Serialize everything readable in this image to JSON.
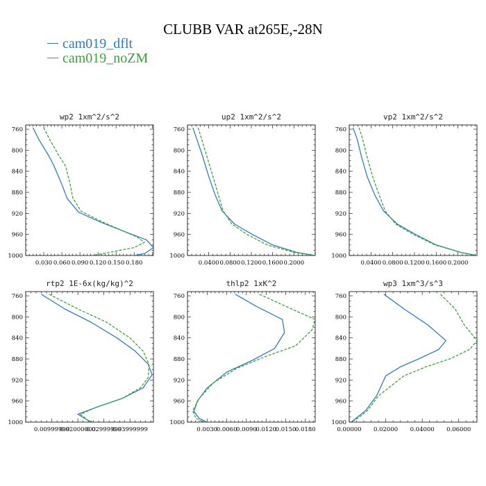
{
  "title": "CLUBB VAR at265E,-28N",
  "legend": [
    {
      "name": "cam019_dflt",
      "color": "#2f7bbf",
      "dash": "solid"
    },
    {
      "name": "cam019_noZM",
      "color": "#3aa33a",
      "dash": "dashed"
    }
  ],
  "chart_data": [
    {
      "type": "line",
      "title": "wp2  1xm^2/s^2",
      "xlim": [
        0,
        0.212
      ],
      "ylim": [
        1000,
        752
      ],
      "y_reversed": true,
      "x_ticks": [
        0.03,
        0.06,
        0.09,
        0.12,
        0.15,
        0.18
      ],
      "x_tick_labels": [
        "0.030",
        "0.060",
        "0.090",
        "0.120",
        "0.150",
        "0.180"
      ],
      "y_ticks": [
        760,
        800,
        840,
        880,
        920,
        960,
        1000
      ],
      "series": [
        {
          "name": "cam019_dflt",
          "points": [
            [
              0.012,
              757
            ],
            [
              0.022,
              780
            ],
            [
              0.038,
              810
            ],
            [
              0.047,
              830
            ],
            [
              0.06,
              865
            ],
            [
              0.069,
              892
            ],
            [
              0.088,
              918
            ],
            [
              0.125,
              937
            ],
            [
              0.165,
              955
            ],
            [
              0.2,
              970
            ],
            [
              0.212,
              985
            ],
            [
              0.198,
              996
            ],
            [
              0.18,
              1000
            ]
          ]
        },
        {
          "name": "cam019_noZM",
          "points": [
            [
              0.03,
              757
            ],
            [
              0.04,
              780
            ],
            [
              0.055,
              810
            ],
            [
              0.066,
              830
            ],
            [
              0.073,
              860
            ],
            [
              0.078,
              890
            ],
            [
              0.092,
              916
            ],
            [
              0.125,
              935
            ],
            [
              0.155,
              950
            ],
            [
              0.185,
              965
            ],
            [
              0.197,
              975
            ],
            [
              0.18,
              985
            ],
            [
              0.13,
              996
            ],
            [
              0.11,
              1000
            ]
          ]
        }
      ]
    },
    {
      "type": "line",
      "title": "up2  1xm^2/s^2",
      "xlim": [
        0,
        0.24
      ],
      "ylim": [
        1000,
        752
      ],
      "y_reversed": true,
      "x_ticks": [
        0.04,
        0.08,
        0.12,
        0.16,
        0.2
      ],
      "x_tick_labels": [
        "0.0400",
        "0.0800",
        "0.1200",
        "0.1600",
        "0.2000"
      ],
      "y_ticks": [
        760,
        800,
        840,
        880,
        920,
        960,
        1000
      ],
      "series": [
        {
          "name": "cam019_dflt",
          "points": [
            [
              0.01,
              757
            ],
            [
              0.018,
              780
            ],
            [
              0.028,
              810
            ],
            [
              0.04,
              850
            ],
            [
              0.052,
              885
            ],
            [
              0.065,
              915
            ],
            [
              0.088,
              940
            ],
            [
              0.122,
              960
            ],
            [
              0.16,
              980
            ],
            [
              0.205,
              994
            ],
            [
              0.24,
              1000
            ]
          ]
        },
        {
          "name": "cam019_noZM",
          "points": [
            [
              0.02,
              757
            ],
            [
              0.027,
              780
            ],
            [
              0.036,
              810
            ],
            [
              0.048,
              850
            ],
            [
              0.058,
              885
            ],
            [
              0.067,
              915
            ],
            [
              0.083,
              940
            ],
            [
              0.112,
              960
            ],
            [
              0.15,
              980
            ],
            [
              0.2,
              994
            ],
            [
              0.24,
              1000
            ]
          ]
        }
      ]
    },
    {
      "type": "line",
      "title": "vp2  1xm^2/s^2",
      "xlim": [
        0,
        0.235
      ],
      "ylim": [
        1000,
        752
      ],
      "y_reversed": true,
      "x_ticks": [
        0.04,
        0.08,
        0.12,
        0.16,
        0.2
      ],
      "x_tick_labels": [
        "0.0400",
        "0.0800",
        "0.1200",
        "0.1600",
        "0.2000"
      ],
      "y_ticks": [
        760,
        800,
        840,
        880,
        920,
        960,
        1000
      ],
      "series": [
        {
          "name": "cam019_dflt",
          "points": [
            [
              0.007,
              757
            ],
            [
              0.015,
              780
            ],
            [
              0.022,
              810
            ],
            [
              0.033,
              850
            ],
            [
              0.047,
              885
            ],
            [
              0.063,
              915
            ],
            [
              0.088,
              940
            ],
            [
              0.122,
              960
            ],
            [
              0.16,
              980
            ],
            [
              0.205,
              994
            ],
            [
              0.235,
              1000
            ]
          ]
        },
        {
          "name": "cam019_noZM",
          "points": [
            [
              0.018,
              757
            ],
            [
              0.025,
              780
            ],
            [
              0.032,
              810
            ],
            [
              0.043,
              850
            ],
            [
              0.055,
              885
            ],
            [
              0.066,
              915
            ],
            [
              0.085,
              940
            ],
            [
              0.118,
              960
            ],
            [
              0.158,
              980
            ],
            [
              0.205,
              994
            ],
            [
              0.235,
              1000
            ]
          ]
        }
      ]
    },
    {
      "type": "line",
      "title": "rtp2  1E-6x(kg/kg)^2",
      "xlim": [
        0,
        0.049
      ],
      "ylim": [
        1000,
        752
      ],
      "y_reversed": true,
      "x_ticks": [
        0.01,
        0.02,
        0.03,
        0.04
      ],
      "x_tick_labels": [
        "0.00999999",
        "0.02000000",
        "0.02999999",
        "0.03999999"
      ],
      "y_ticks": [
        760,
        800,
        840,
        880,
        920,
        960,
        1000
      ],
      "series": [
        {
          "name": "cam019_dflt",
          "points": [
            [
              0.006,
              757
            ],
            [
              0.015,
              785
            ],
            [
              0.025,
              810
            ],
            [
              0.035,
              840
            ],
            [
              0.042,
              865
            ],
            [
              0.047,
              890
            ],
            [
              0.0485,
              910
            ],
            [
              0.045,
              935
            ],
            [
              0.037,
              955
            ],
            [
              0.027,
              972
            ],
            [
              0.02,
              985
            ],
            [
              0.024,
              997
            ],
            [
              0.026,
              1000
            ]
          ]
        },
        {
          "name": "cam019_noZM",
          "points": [
            [
              0.009,
              757
            ],
            [
              0.02,
              785
            ],
            [
              0.031,
              810
            ],
            [
              0.04,
              840
            ],
            [
              0.045,
              865
            ],
            [
              0.0473,
              890
            ],
            [
              0.047,
              915
            ],
            [
              0.044,
              935
            ],
            [
              0.037,
              955
            ],
            [
              0.027,
              972
            ],
            [
              0.021,
              985
            ],
            [
              0.024,
              997
            ],
            [
              0.026,
              1000
            ]
          ]
        }
      ]
    },
    {
      "type": "line",
      "title": "thlp2  1xK^2",
      "xlim": [
        0,
        0.0195
      ],
      "ylim": [
        1000,
        752
      ],
      "y_reversed": true,
      "x_ticks": [
        0.003,
        0.006,
        0.009,
        0.012,
        0.015,
        0.018
      ],
      "x_tick_labels": [
        "0.0030",
        "0.0060",
        "0.0090",
        "0.0120",
        "0.0150",
        "0.0180"
      ],
      "y_ticks": [
        760,
        800,
        840,
        880,
        920,
        960,
        1000
      ],
      "series": [
        {
          "name": "cam019_dflt",
          "points": [
            [
              0.0073,
              757
            ],
            [
              0.0105,
              780
            ],
            [
              0.0145,
              805
            ],
            [
              0.0148,
              830
            ],
            [
              0.0133,
              860
            ],
            [
              0.01,
              882
            ],
            [
              0.006,
              905
            ],
            [
              0.003,
              935
            ],
            [
              0.0015,
              960
            ],
            [
              0.001,
              980
            ],
            [
              0.0018,
              993
            ],
            [
              0.003,
              1000
            ]
          ]
        },
        {
          "name": "cam019_noZM",
          "points": [
            [
              0.011,
              757
            ],
            [
              0.015,
              780
            ],
            [
              0.0195,
              805
            ],
            [
              0.019,
              825
            ],
            [
              0.0165,
              855
            ],
            [
              0.012,
              875
            ],
            [
              0.0075,
              898
            ],
            [
              0.004,
              925
            ],
            [
              0.0018,
              955
            ],
            [
              0.0008,
              978
            ],
            [
              0.0013,
              993
            ],
            [
              0.0025,
              1000
            ]
          ]
        }
      ]
    },
    {
      "type": "line",
      "title": "wp3  1xm^3/s^3",
      "xlim": [
        0,
        0.07
      ],
      "ylim": [
        1000,
        752
      ],
      "y_reversed": true,
      "x_ticks": [
        0.0,
        0.02,
        0.04,
        0.06
      ],
      "x_tick_labels": [
        "0.00000",
        "0.02000",
        "0.04000",
        "0.06000"
      ],
      "y_ticks": [
        760,
        800,
        840,
        880,
        920,
        960,
        1000
      ],
      "series": [
        {
          "name": "cam019_dflt",
          "points": [
            [
              0.019,
              757
            ],
            [
              0.03,
              785
            ],
            [
              0.043,
              815
            ],
            [
              0.053,
              845
            ],
            [
              0.049,
              862
            ],
            [
              0.038,
              880
            ],
            [
              0.028,
              895
            ],
            [
              0.02,
              912
            ],
            [
              0.015,
              950
            ],
            [
              0.009,
              978
            ],
            [
              0.004,
              992
            ],
            [
              0.001,
              1000
            ]
          ]
        },
        {
          "name": "cam019_noZM",
          "points": [
            [
              0.05,
              757
            ],
            [
              0.058,
              785
            ],
            [
              0.063,
              815
            ],
            [
              0.07,
              845
            ],
            [
              0.066,
              862
            ],
            [
              0.055,
              880
            ],
            [
              0.042,
              895
            ],
            [
              0.03,
              912
            ],
            [
              0.016,
              950
            ],
            [
              0.01,
              978
            ],
            [
              0.005,
              992
            ],
            [
              0.001,
              1000
            ]
          ]
        }
      ]
    }
  ]
}
